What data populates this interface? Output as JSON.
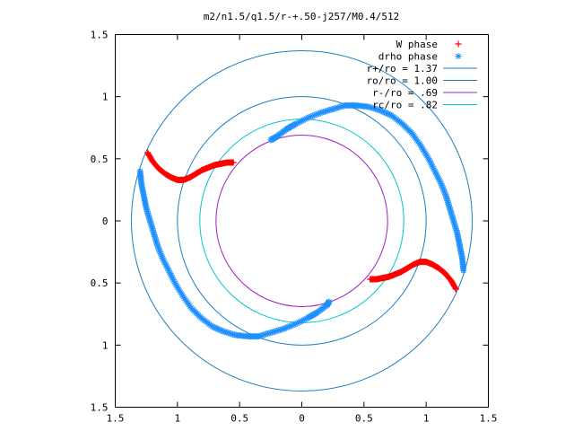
{
  "chart_data": {
    "type": "scatter",
    "title": "m2/n1.5/q1.5/r-+.50-j257/M0.4/512",
    "xlabel": "",
    "ylabel": "",
    "xlim": [
      -1.5,
      1.5
    ],
    "ylim": [
      -1.5,
      1.5
    ],
    "grid": false,
    "legend_position": "top-right",
    "x_ticks": [
      -1.5,
      -1,
      -0.5,
      0,
      0.5,
      1,
      1.5
    ],
    "x_tick_labels": [
      "1.5",
      "1",
      "0.5",
      "0",
      "0.5",
      "1",
      "1.5"
    ],
    "y_ticks": [
      1.5,
      1,
      0.5,
      0,
      -0.5,
      -1,
      -1.5
    ],
    "y_tick_labels": [
      "1.5",
      "1",
      "0.5",
      "0",
      "0.5",
      "1",
      "1.5"
    ],
    "circles": [
      {
        "name": "r+/ro = 1.37",
        "radius": 1.37,
        "color": "#1a7fc0"
      },
      {
        "name": "ro/ro = 1.00",
        "radius": 1.0,
        "color": "#1a7fc0"
      },
      {
        "name": "r-/ro =  .69",
        "radius": 0.69,
        "color": "#a020c0"
      },
      {
        "name": "rc/ro =  .82",
        "radius": 0.82,
        "color": "#00c8c8"
      }
    ],
    "series": [
      {
        "name": "W phase",
        "marker": "plus",
        "color": "#ff0000",
        "segments": [
          [
            [
              -1.24,
              0.55
            ],
            [
              -1.2,
              0.48
            ],
            [
              -1.15,
              0.42
            ],
            [
              -1.1,
              0.38
            ],
            [
              -1.05,
              0.35
            ],
            [
              -1.0,
              0.33
            ],
            [
              -0.95,
              0.33
            ],
            [
              -0.9,
              0.35
            ],
            [
              -0.85,
              0.38
            ],
            [
              -0.8,
              0.41
            ],
            [
              -0.75,
              0.43
            ],
            [
              -0.7,
              0.45
            ],
            [
              -0.65,
              0.46
            ],
            [
              -0.6,
              0.47
            ],
            [
              -0.55,
              0.47
            ]
          ],
          [
            [
              1.24,
              -0.55
            ],
            [
              1.2,
              -0.48
            ],
            [
              1.15,
              -0.42
            ],
            [
              1.1,
              -0.38
            ],
            [
              1.05,
              -0.35
            ],
            [
              1.0,
              -0.33
            ],
            [
              0.95,
              -0.33
            ],
            [
              0.9,
              -0.35
            ],
            [
              0.85,
              -0.38
            ],
            [
              0.8,
              -0.41
            ],
            [
              0.75,
              -0.43
            ],
            [
              0.7,
              -0.45
            ],
            [
              0.65,
              -0.46
            ],
            [
              0.6,
              -0.47
            ],
            [
              0.55,
              -0.47
            ]
          ]
        ]
      },
      {
        "name": "drho phase",
        "marker": "asterisk",
        "color": "#1e90ff",
        "segments": [
          [
            [
              -1.3,
              0.4
            ],
            [
              -1.29,
              0.3
            ],
            [
              -1.27,
              0.2
            ],
            [
              -1.25,
              0.1
            ],
            [
              -1.22,
              0.0
            ],
            [
              -1.19,
              -0.1
            ],
            [
              -1.16,
              -0.2
            ],
            [
              -1.12,
              -0.3
            ],
            [
              -1.07,
              -0.4
            ],
            [
              -1.02,
              -0.5
            ],
            [
              -0.96,
              -0.6
            ],
            [
              -0.89,
              -0.7
            ],
            [
              -0.81,
              -0.78
            ],
            [
              -0.72,
              -0.85
            ],
            [
              -0.63,
              -0.89
            ],
            [
              -0.53,
              -0.92
            ],
            [
              -0.43,
              -0.93
            ],
            [
              -0.35,
              -0.93
            ],
            [
              -0.25,
              -0.9
            ],
            [
              -0.15,
              -0.87
            ],
            [
              -0.05,
              -0.83
            ],
            [
              0.05,
              -0.78
            ],
            [
              0.12,
              -0.74
            ],
            [
              0.2,
              -0.68
            ],
            [
              0.22,
              -0.65
            ]
          ],
          [
            [
              1.3,
              -0.4
            ],
            [
              1.29,
              -0.3
            ],
            [
              1.27,
              -0.2
            ],
            [
              1.25,
              -0.1
            ],
            [
              1.22,
              0.0
            ],
            [
              1.19,
              0.1
            ],
            [
              1.16,
              0.2
            ],
            [
              1.12,
              0.3
            ],
            [
              1.07,
              0.4
            ],
            [
              1.02,
              0.5
            ],
            [
              0.96,
              0.6
            ],
            [
              0.89,
              0.7
            ],
            [
              0.81,
              0.78
            ],
            [
              0.72,
              0.85
            ],
            [
              0.63,
              0.89
            ],
            [
              0.53,
              0.92
            ],
            [
              0.43,
              0.93
            ],
            [
              0.35,
              0.93
            ],
            [
              0.25,
              0.9
            ],
            [
              0.15,
              0.87
            ],
            [
              0.05,
              0.83
            ],
            [
              -0.05,
              0.78
            ],
            [
              -0.12,
              0.74
            ],
            [
              -0.2,
              0.68
            ],
            [
              -0.25,
              0.65
            ]
          ]
        ]
      }
    ]
  }
}
